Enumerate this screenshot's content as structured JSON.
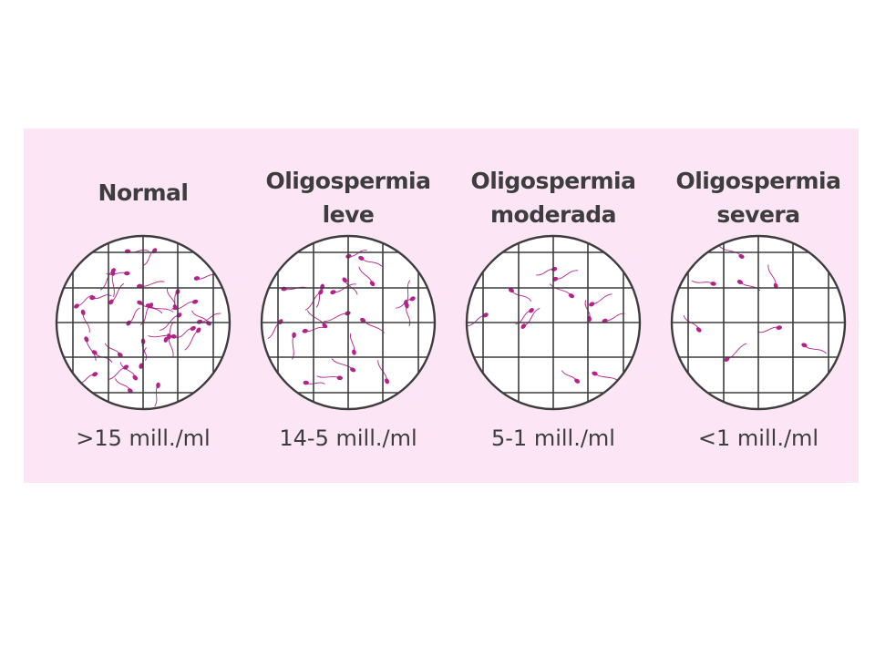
{
  "colors": {
    "background": "#fce6f6",
    "grid": "#3d3d3d",
    "sperm": "#b5208a",
    "text": "#3d3d3d"
  },
  "categories": [
    {
      "title_lines": [
        "Normal"
      ],
      "concentration": ">15 mill./ml",
      "sperm_count": 36
    },
    {
      "title_lines": [
        "Oligospermia",
        "leve"
      ],
      "concentration": "14-5 mill./ml",
      "sperm_count": 22
    },
    {
      "title_lines": [
        "Oligospermia",
        "moderada"
      ],
      "concentration": "5-1 mill./ml",
      "sperm_count": 12
    },
    {
      "title_lines": [
        "Oligospermia",
        "severa"
      ],
      "concentration": "<1 mill./ml",
      "sperm_count": 8
    }
  ]
}
